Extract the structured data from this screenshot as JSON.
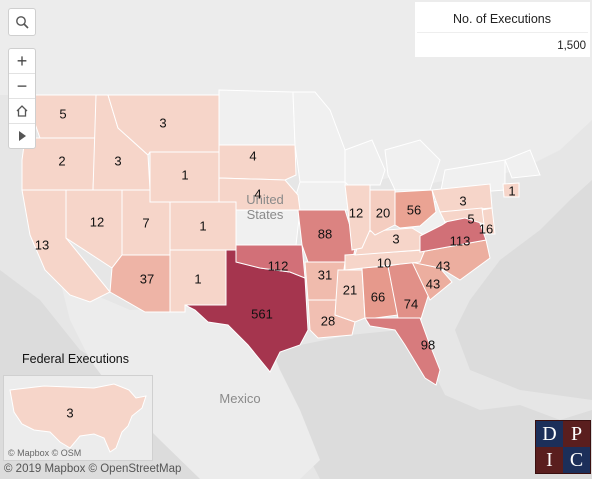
{
  "legend": {
    "title": "No. of Executions",
    "max_value": "1,500"
  },
  "places": {
    "country_us_1": "United",
    "country_us_2": "States",
    "country_mexico": "Mexico"
  },
  "federal": {
    "title": "Federal Executions",
    "value": "3",
    "inset_attribution": "© Mapbox  © OSM"
  },
  "attribution": "© 2019 Mapbox  © OpenStreetMap",
  "logo": {
    "letters": [
      "D",
      "P",
      "I",
      "C"
    ]
  },
  "icons": {
    "search": "search-icon",
    "zoom_in": "plus-icon",
    "zoom_out": "minus-icon",
    "home": "home-icon",
    "pan": "play-icon"
  },
  "colors": {
    "scale_low": "#f6d5c9",
    "scale_mid": "#e9a090",
    "scale_high": "#c5566a",
    "scale_max": "#a5354e"
  },
  "states": [
    {
      "abbr": "WA",
      "label": "5",
      "value": 5
    },
    {
      "abbr": "OR",
      "label": "2",
      "value": 2
    },
    {
      "abbr": "CA",
      "label": "13",
      "value": 13
    },
    {
      "abbr": "ID",
      "label": "3",
      "value": 3
    },
    {
      "abbr": "NV",
      "label": "12",
      "value": 12
    },
    {
      "abbr": "MT",
      "label": "3",
      "value": 3
    },
    {
      "abbr": "WY",
      "label": "1",
      "value": 1
    },
    {
      "abbr": "UT",
      "label": "7",
      "value": 7
    },
    {
      "abbr": "CO",
      "label": "1",
      "value": 1
    },
    {
      "abbr": "AZ",
      "label": "37",
      "value": 37
    },
    {
      "abbr": "NM",
      "label": "1",
      "value": 1
    },
    {
      "abbr": "SD",
      "label": "4",
      "value": 4
    },
    {
      "abbr": "NE",
      "label": "4",
      "value": 4
    },
    {
      "abbr": "TX",
      "label": "561",
      "value": 561
    },
    {
      "abbr": "OK",
      "label": "112",
      "value": 112
    },
    {
      "abbr": "MO",
      "label": "88",
      "value": 88
    },
    {
      "abbr": "AR",
      "label": "31",
      "value": 31
    },
    {
      "abbr": "LA",
      "label": "28",
      "value": 28
    },
    {
      "abbr": "MS",
      "label": "21",
      "value": 21
    },
    {
      "abbr": "AL",
      "label": "66",
      "value": 66
    },
    {
      "abbr": "GA",
      "label": "74",
      "value": 74
    },
    {
      "abbr": "FL",
      "label": "98",
      "value": 98
    },
    {
      "abbr": "SC",
      "label": "43",
      "value": 43
    },
    {
      "abbr": "NC",
      "label": "43",
      "value": 43
    },
    {
      "abbr": "TN",
      "label": "10",
      "value": 10
    },
    {
      "abbr": "KY",
      "label": "3",
      "value": 3
    },
    {
      "abbr": "VA",
      "label": "113",
      "value": 113
    },
    {
      "abbr": "IL",
      "label": "12",
      "value": 12
    },
    {
      "abbr": "IN",
      "label": "20",
      "value": 20
    },
    {
      "abbr": "OH",
      "label": "56",
      "value": 56
    },
    {
      "abbr": "PA",
      "label": "3",
      "value": 3
    },
    {
      "abbr": "DE",
      "label": "16",
      "value": 16
    },
    {
      "abbr": "MD",
      "label": "5",
      "value": 5
    },
    {
      "abbr": "CT",
      "label": "1",
      "value": 1
    }
  ]
}
